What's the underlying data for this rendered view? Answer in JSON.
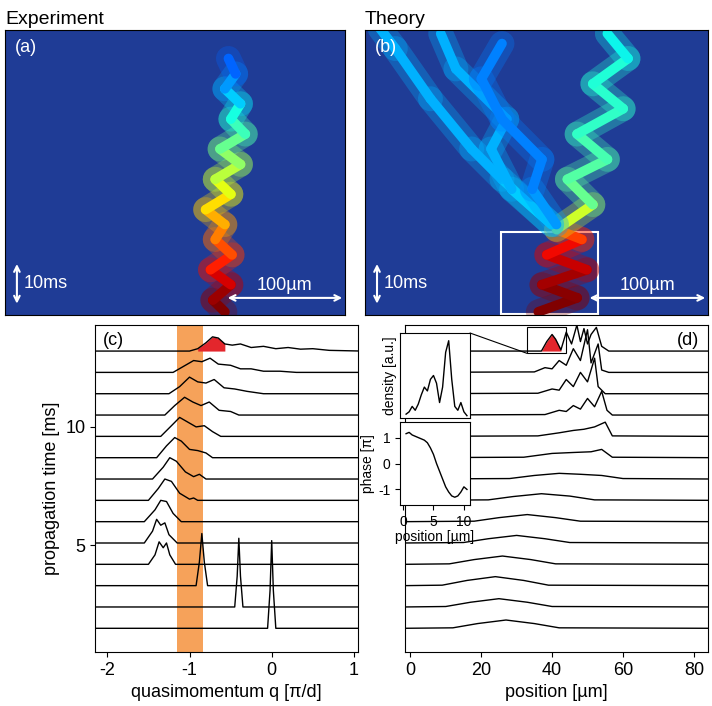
{
  "chart_data": [
    {
      "type": "trajectory",
      "title": "Experiment",
      "label": "(a)",
      "xlim": [
        0,
        283
      ],
      "ylim": [
        0,
        63
      ],
      "xticks": [],
      "yticks": [],
      "tick_labels": false,
      "scale_bars": [
        {
          "label": "10ms",
          "length": 10,
          "axis": "time"
        },
        {
          "label": "100µm",
          "length": 100,
          "axis": "position"
        }
      ],
      "series": [
        {
          "time": [
            0.7,
            3.3,
            6.7,
            10,
            13.3,
            16.7,
            20,
            23.3,
            26.7,
            30,
            33.3,
            36.7,
            40,
            43.3,
            46.7,
            50,
            53.3,
            56.7
          ],
          "position": [
            183,
            173,
            188,
            171,
            189,
            175,
            183,
            167,
            188,
            175,
            196,
            179,
            200,
            188,
            196,
            183,
            192,
            186
          ],
          "intensity": [
            1,
            1,
            0.95,
            0.9,
            0.85,
            0.8,
            0.75,
            0.7,
            0.65,
            0.6,
            0.55,
            0.5,
            0.45,
            0.4,
            0.35,
            0.3,
            0.25,
            0.2
          ]
        }
      ]
    },
    {
      "type": "trajectory",
      "title": "Theory",
      "label": "(b)",
      "xlim": [
        0,
        283
      ],
      "ylim": [
        0,
        63
      ],
      "xticks": [],
      "yticks": [],
      "tick_labels": false,
      "scale_bars": [
        {
          "label": "10ms",
          "length": 10,
          "axis": "time"
        },
        {
          "label": "100µm",
          "length": 100,
          "axis": "position"
        }
      ],
      "box": {
        "position": [
          112,
          192
        ],
        "time": [
          0.2,
          18.4
        ]
      },
      "series": [
        {
          "time": [
            0.7,
            3.8,
            6.7,
            10,
            13.3,
            16.7,
            18.9
          ],
          "position": [
            143,
            175,
            146,
            183,
            150,
            179,
            158
          ],
          "intensity": [
            1,
            1,
            0.98,
            0.95,
            0.92,
            0.88,
            0.8
          ]
        },
        {
          "time": [
            18.9,
            24.4,
            30,
            34.4,
            40,
            45.6,
            51.1,
            56.7,
            62.2
          ],
          "position": [
            158,
            188,
            167,
            200,
            175,
            213,
            188,
            217,
            200
          ],
          "intensity": [
            0.7,
            0.5,
            0.45,
            0.45,
            0.42,
            0.4,
            0.4,
            0.38,
            0.35
          ]
        },
        {
          "time": [
            20,
            30,
            36.7,
            47.8,
            58.9,
            63.3
          ],
          "position": [
            154,
            113,
            88,
            54,
            25,
            12.5
          ],
          "intensity": [
            0.35,
            0.3,
            0.3,
            0.3,
            0.3,
            0.3
          ]
        },
        {
          "time": [
            20,
            27.8,
            36.7,
            43.3,
            54.4,
            62.2
          ],
          "position": [
            154,
            121,
            104,
            117,
            75,
            62.5
          ],
          "intensity": [
            0.35,
            0.3,
            0.3,
            0.3,
            0.3,
            0.3
          ]
        },
        {
          "time": [
            20,
            27.8,
            34.4,
            43.3,
            52.2,
            60
          ],
          "position": [
            158,
            138,
            146,
            113,
            96,
            113
          ],
          "intensity": [
            0.3,
            0.25,
            0.25,
            0.25,
            0.25,
            0.25
          ]
        }
      ]
    },
    {
      "type": "waterfall",
      "label": "(c)",
      "x_label": "quasimomentum q [π/d]",
      "y_label": "propagation time [ms]",
      "xlim": [
        -2.15,
        1.05
      ],
      "ylim": [
        0.5,
        14.3
      ],
      "xticks": [
        -2,
        -1,
        0,
        1
      ],
      "yticks": [
        5,
        10
      ],
      "color": "#000000",
      "band": {
        "range": [
          -1.15,
          -0.83
        ],
        "color": "#f6a25a"
      },
      "curves": [
        {
          "time": 1.5,
          "x": [
            -2.2,
            -0.05,
            -0.02,
            0,
            0.02,
            0.05,
            1.1
          ],
          "density": [
            0,
            0,
            1.6,
            3.7,
            1.6,
            0,
            0
          ]
        },
        {
          "time": 2.4,
          "x": [
            -2.2,
            -0.45,
            -0.42,
            -0.4,
            -0.38,
            -0.35,
            1.1
          ],
          "density": [
            0,
            0,
            1.3,
            2.9,
            1.3,
            0,
            0
          ]
        },
        {
          "time": 3.3,
          "x": [
            -2.2,
            -0.92,
            -0.88,
            -0.85,
            -0.82,
            -0.78,
            1.1
          ],
          "density": [
            0,
            0,
            1.0,
            2.2,
            1.0,
            0,
            0
          ]
        },
        {
          "time": 4.2,
          "x": [
            -2.2,
            -1.5,
            -1.42,
            -1.37,
            -1.32,
            -1.28,
            -1.24,
            -1.17,
            1.1
          ],
          "density": [
            0,
            0,
            0.4,
            0.95,
            0.7,
            0.9,
            0.4,
            0,
            0
          ]
        },
        {
          "time": 5.1,
          "x": [
            -2.2,
            -1.55,
            -1.45,
            -1.4,
            -1.35,
            -1.3,
            -1.25,
            -1.15,
            1.1
          ],
          "density": [
            0,
            0,
            0.5,
            1.0,
            0.75,
            0.85,
            0.35,
            0,
            0
          ]
        },
        {
          "time": 6.0,
          "x": [
            -2.2,
            -1.55,
            -1.42,
            -1.35,
            -1.28,
            -1.2,
            -1.1,
            1.1
          ],
          "density": [
            0,
            0,
            0.5,
            0.9,
            0.85,
            0.35,
            0,
            0
          ]
        },
        {
          "time": 6.9,
          "x": [
            -2.2,
            -1.5,
            -1.38,
            -1.3,
            -1.22,
            -1.12,
            -1.0,
            -0.95,
            -0.9,
            1.1
          ],
          "density": [
            0,
            0,
            0.5,
            0.9,
            0.8,
            0.3,
            0.05,
            0.1,
            0,
            0
          ]
        },
        {
          "time": 7.8,
          "x": [
            -2.2,
            -1.45,
            -1.32,
            -1.24,
            -1.16,
            -1.05,
            -0.95,
            -0.88,
            -0.8,
            1.1
          ],
          "density": [
            0,
            0,
            0.5,
            0.9,
            0.75,
            0.3,
            0.1,
            0.2,
            0,
            0
          ]
        },
        {
          "time": 8.7,
          "x": [
            -2.2,
            -1.4,
            -1.28,
            -1.18,
            -1.1,
            -1.0,
            -0.9,
            -0.8,
            -0.72,
            1.1
          ],
          "density": [
            0,
            0,
            0.5,
            0.85,
            0.7,
            0.35,
            0.3,
            0.2,
            0,
            0
          ]
        },
        {
          "time": 9.6,
          "x": [
            -2.2,
            -1.35,
            -1.22,
            -1.12,
            -1.02,
            -0.92,
            -0.82,
            -0.72,
            -0.62,
            1.1
          ],
          "density": [
            0,
            0,
            0.45,
            0.8,
            0.6,
            0.4,
            0.45,
            0.2,
            0,
            0
          ]
        },
        {
          "time": 10.5,
          "x": [
            -2.2,
            -1.3,
            -1.18,
            -1.06,
            -0.96,
            -0.86,
            -0.76,
            -0.64,
            -0.5,
            -0.4,
            1.1
          ],
          "density": [
            0,
            0,
            0.4,
            0.75,
            0.55,
            0.4,
            0.55,
            0.2,
            0.15,
            0,
            0
          ]
        },
        {
          "time": 11.4,
          "x": [
            -2.2,
            -1.25,
            -1.12,
            -1.0,
            -0.9,
            -0.8,
            -0.7,
            -0.58,
            -0.45,
            -0.3,
            -0.1,
            1.1
          ],
          "density": [
            0,
            0,
            0.3,
            0.7,
            0.5,
            0.45,
            0.6,
            0.25,
            0.2,
            0.1,
            0,
            0
          ]
        },
        {
          "time": 12.3,
          "x": [
            -2.2,
            -1.2,
            -1.05,
            -0.95,
            -0.85,
            -0.75,
            -0.65,
            -0.5,
            -0.38,
            -0.25,
            -0.1,
            0.1,
            0.3,
            1.1
          ],
          "density": [
            0,
            0,
            0.3,
            0.5,
            0.45,
            0.6,
            0.35,
            0.3,
            0.15,
            0.15,
            0.05,
            0.05,
            0,
            0
          ]
        },
        {
          "time": 13.2,
          "x": [
            -2.2,
            -1.0,
            -0.9,
            -0.8,
            -0.72,
            -0.65,
            -0.57,
            -0.48,
            -0.38,
            -0.25,
            -0.1,
            0.05,
            0.2,
            0.35,
            0.5,
            0.7,
            1.1
          ],
          "density": [
            0,
            0,
            0.1,
            0.35,
            0.6,
            0.55,
            0.3,
            0.25,
            0.3,
            0.15,
            0.2,
            0.1,
            0.15,
            0.08,
            0.1,
            0.03,
            0
          ],
          "fill": {
            "range": [
              -0.9,
              -0.5
            ],
            "color": "#e3262c"
          }
        }
      ]
    },
    {
      "type": "waterfall",
      "label": "(d)",
      "x_label": "position [µm]",
      "xlim": [
        -1.5,
        84
      ],
      "ylim": [
        0.5,
        14.3
      ],
      "xticks": [
        0,
        20,
        40,
        60,
        80
      ],
      "yticks": [],
      "tick_labels": "x",
      "color": "#000000",
      "zoom": {
        "x": [
          33,
          44
        ],
        "time": [
          13.1,
          14.2
        ]
      },
      "curves": [
        {
          "time": 1.5,
          "x": [
            -2,
            12,
            19,
            27,
            35,
            42,
            86
          ],
          "density": [
            0,
            0.02,
            0.2,
            0.35,
            0.2,
            0.02,
            0
          ]
        },
        {
          "time": 2.4,
          "x": [
            -2,
            10,
            17,
            25,
            33,
            40,
            86
          ],
          "density": [
            0,
            0.02,
            0.2,
            0.35,
            0.2,
            0.02,
            0
          ]
        },
        {
          "time": 3.3,
          "x": [
            -2,
            9,
            16,
            24,
            32,
            39,
            86
          ],
          "density": [
            0,
            0.02,
            0.22,
            0.38,
            0.22,
            0.02,
            0
          ]
        },
        {
          "time": 4.2,
          "x": [
            -2,
            11,
            18,
            26,
            34,
            41,
            86
          ],
          "density": [
            0,
            0.02,
            0.2,
            0.35,
            0.2,
            0.02,
            0
          ]
        },
        {
          "time": 5.1,
          "x": [
            -2,
            15,
            22,
            30,
            38,
            45,
            86
          ],
          "density": [
            0,
            0.02,
            0.18,
            0.32,
            0.18,
            0.02,
            0
          ]
        },
        {
          "time": 6.0,
          "x": [
            -2,
            18,
            25,
            33,
            41,
            48,
            86
          ],
          "density": [
            0,
            0.02,
            0.17,
            0.3,
            0.17,
            0.02,
            0
          ]
        },
        {
          "time": 6.9,
          "x": [
            -2,
            22,
            29,
            37,
            45,
            52,
            86
          ],
          "density": [
            0,
            0.02,
            0.16,
            0.28,
            0.18,
            0.02,
            0
          ]
        },
        {
          "time": 7.8,
          "x": [
            -2,
            28,
            35,
            42,
            48,
            54,
            60,
            86
          ],
          "density": [
            0,
            0.02,
            0.15,
            0.24,
            0.2,
            0.15,
            0.02,
            0
          ]
        },
        {
          "time": 8.7,
          "x": [
            -2,
            32,
            40,
            46,
            51,
            54,
            57,
            86
          ],
          "density": [
            0,
            0.02,
            0.18,
            0.22,
            0.25,
            0.35,
            0.02,
            0
          ]
        },
        {
          "time": 9.6,
          "x": [
            -2,
            36,
            42,
            46,
            49,
            52,
            55,
            57,
            86
          ],
          "density": [
            0,
            0.02,
            0.15,
            0.25,
            0.3,
            0.4,
            0.6,
            0.02,
            0
          ]
        },
        {
          "time": 10.5,
          "x": [
            -2,
            38,
            42,
            44,
            46,
            48,
            50,
            52,
            54,
            55.5,
            57,
            86
          ],
          "density": [
            0,
            0.02,
            0.2,
            0.15,
            0.4,
            0.25,
            0.7,
            0.35,
            1.0,
            0.2,
            0,
            0
          ]
        },
        {
          "time": 11.4,
          "x": [
            -2,
            36,
            40,
            42,
            44,
            46,
            48,
            50,
            52,
            53,
            55,
            86
          ],
          "density": [
            0,
            0.02,
            0.2,
            0.15,
            0.6,
            0.3,
            0.9,
            0.5,
            1.5,
            0.3,
            0,
            0
          ]
        },
        {
          "time": 12.3,
          "x": [
            -2,
            35,
            38,
            40,
            42,
            44,
            46,
            48,
            50,
            51,
            53,
            54,
            56,
            86
          ],
          "density": [
            0,
            0.02,
            0.2,
            0.15,
            0.5,
            0.3,
            1.0,
            0.5,
            1.8,
            0.4,
            1.2,
            0.1,
            0,
            0
          ]
        },
        {
          "time": 13.2,
          "x": [
            -2,
            37,
            38.5,
            40,
            41,
            42.5,
            44,
            45.5,
            47,
            48,
            49,
            50,
            51,
            52.5,
            54,
            56,
            86
          ],
          "density": [
            0,
            0,
            0.4,
            0.7,
            0.5,
            0.05,
            0.8,
            0.3,
            1.1,
            0.4,
            0.95,
            0.3,
            0.7,
            1.0,
            0.2,
            0,
            0
          ],
          "fill": {
            "range": [
              37,
              42.5
            ],
            "color": "#e3262c"
          }
        }
      ]
    },
    {
      "type": "line",
      "y_label": "density [a.u.]",
      "xlim": [
        -0.5,
        11
      ],
      "ylim": [
        0,
        1.1
      ],
      "xticks": [],
      "yticks": [],
      "tick_labels": false,
      "color": "#000000",
      "x": [
        0.5,
        1,
        1.5,
        2,
        2.5,
        3,
        3.5,
        4,
        4.5,
        5,
        5.5,
        6,
        6.5,
        7,
        7.5,
        8,
        8.5,
        9,
        9.5,
        10,
        10.5
      ],
      "values": [
        0.05,
        0.08,
        0.15,
        0.1,
        0.18,
        0.3,
        0.4,
        0.35,
        0.5,
        0.55,
        0.45,
        0.2,
        0.4,
        0.85,
        1.0,
        0.5,
        0.15,
        0.1,
        0.2,
        0.08,
        0.03
      ]
    },
    {
      "type": "line",
      "y_label": "phase [π]",
      "x_label": "position [µm]",
      "xlim": [
        -0.5,
        11
      ],
      "ylim": [
        -1.6,
        1.6
      ],
      "xticks": [
        0,
        5,
        10
      ],
      "yticks": [
        -1,
        0,
        1
      ],
      "color": "#000000",
      "x": [
        0.5,
        1,
        1.5,
        2,
        2.5,
        3,
        3.5,
        4,
        4.5,
        5,
        5.5,
        6,
        6.5,
        7,
        7.5,
        8,
        8.5,
        9,
        9.5,
        10,
        10.5
      ],
      "values": [
        1.15,
        1.2,
        1.1,
        1.05,
        1.0,
        0.95,
        0.9,
        0.8,
        0.6,
        0.35,
        0.0,
        -0.3,
        -0.6,
        -0.9,
        -1.1,
        -1.25,
        -1.3,
        -1.25,
        -1.1,
        -0.9,
        -1.0
      ]
    }
  ]
}
